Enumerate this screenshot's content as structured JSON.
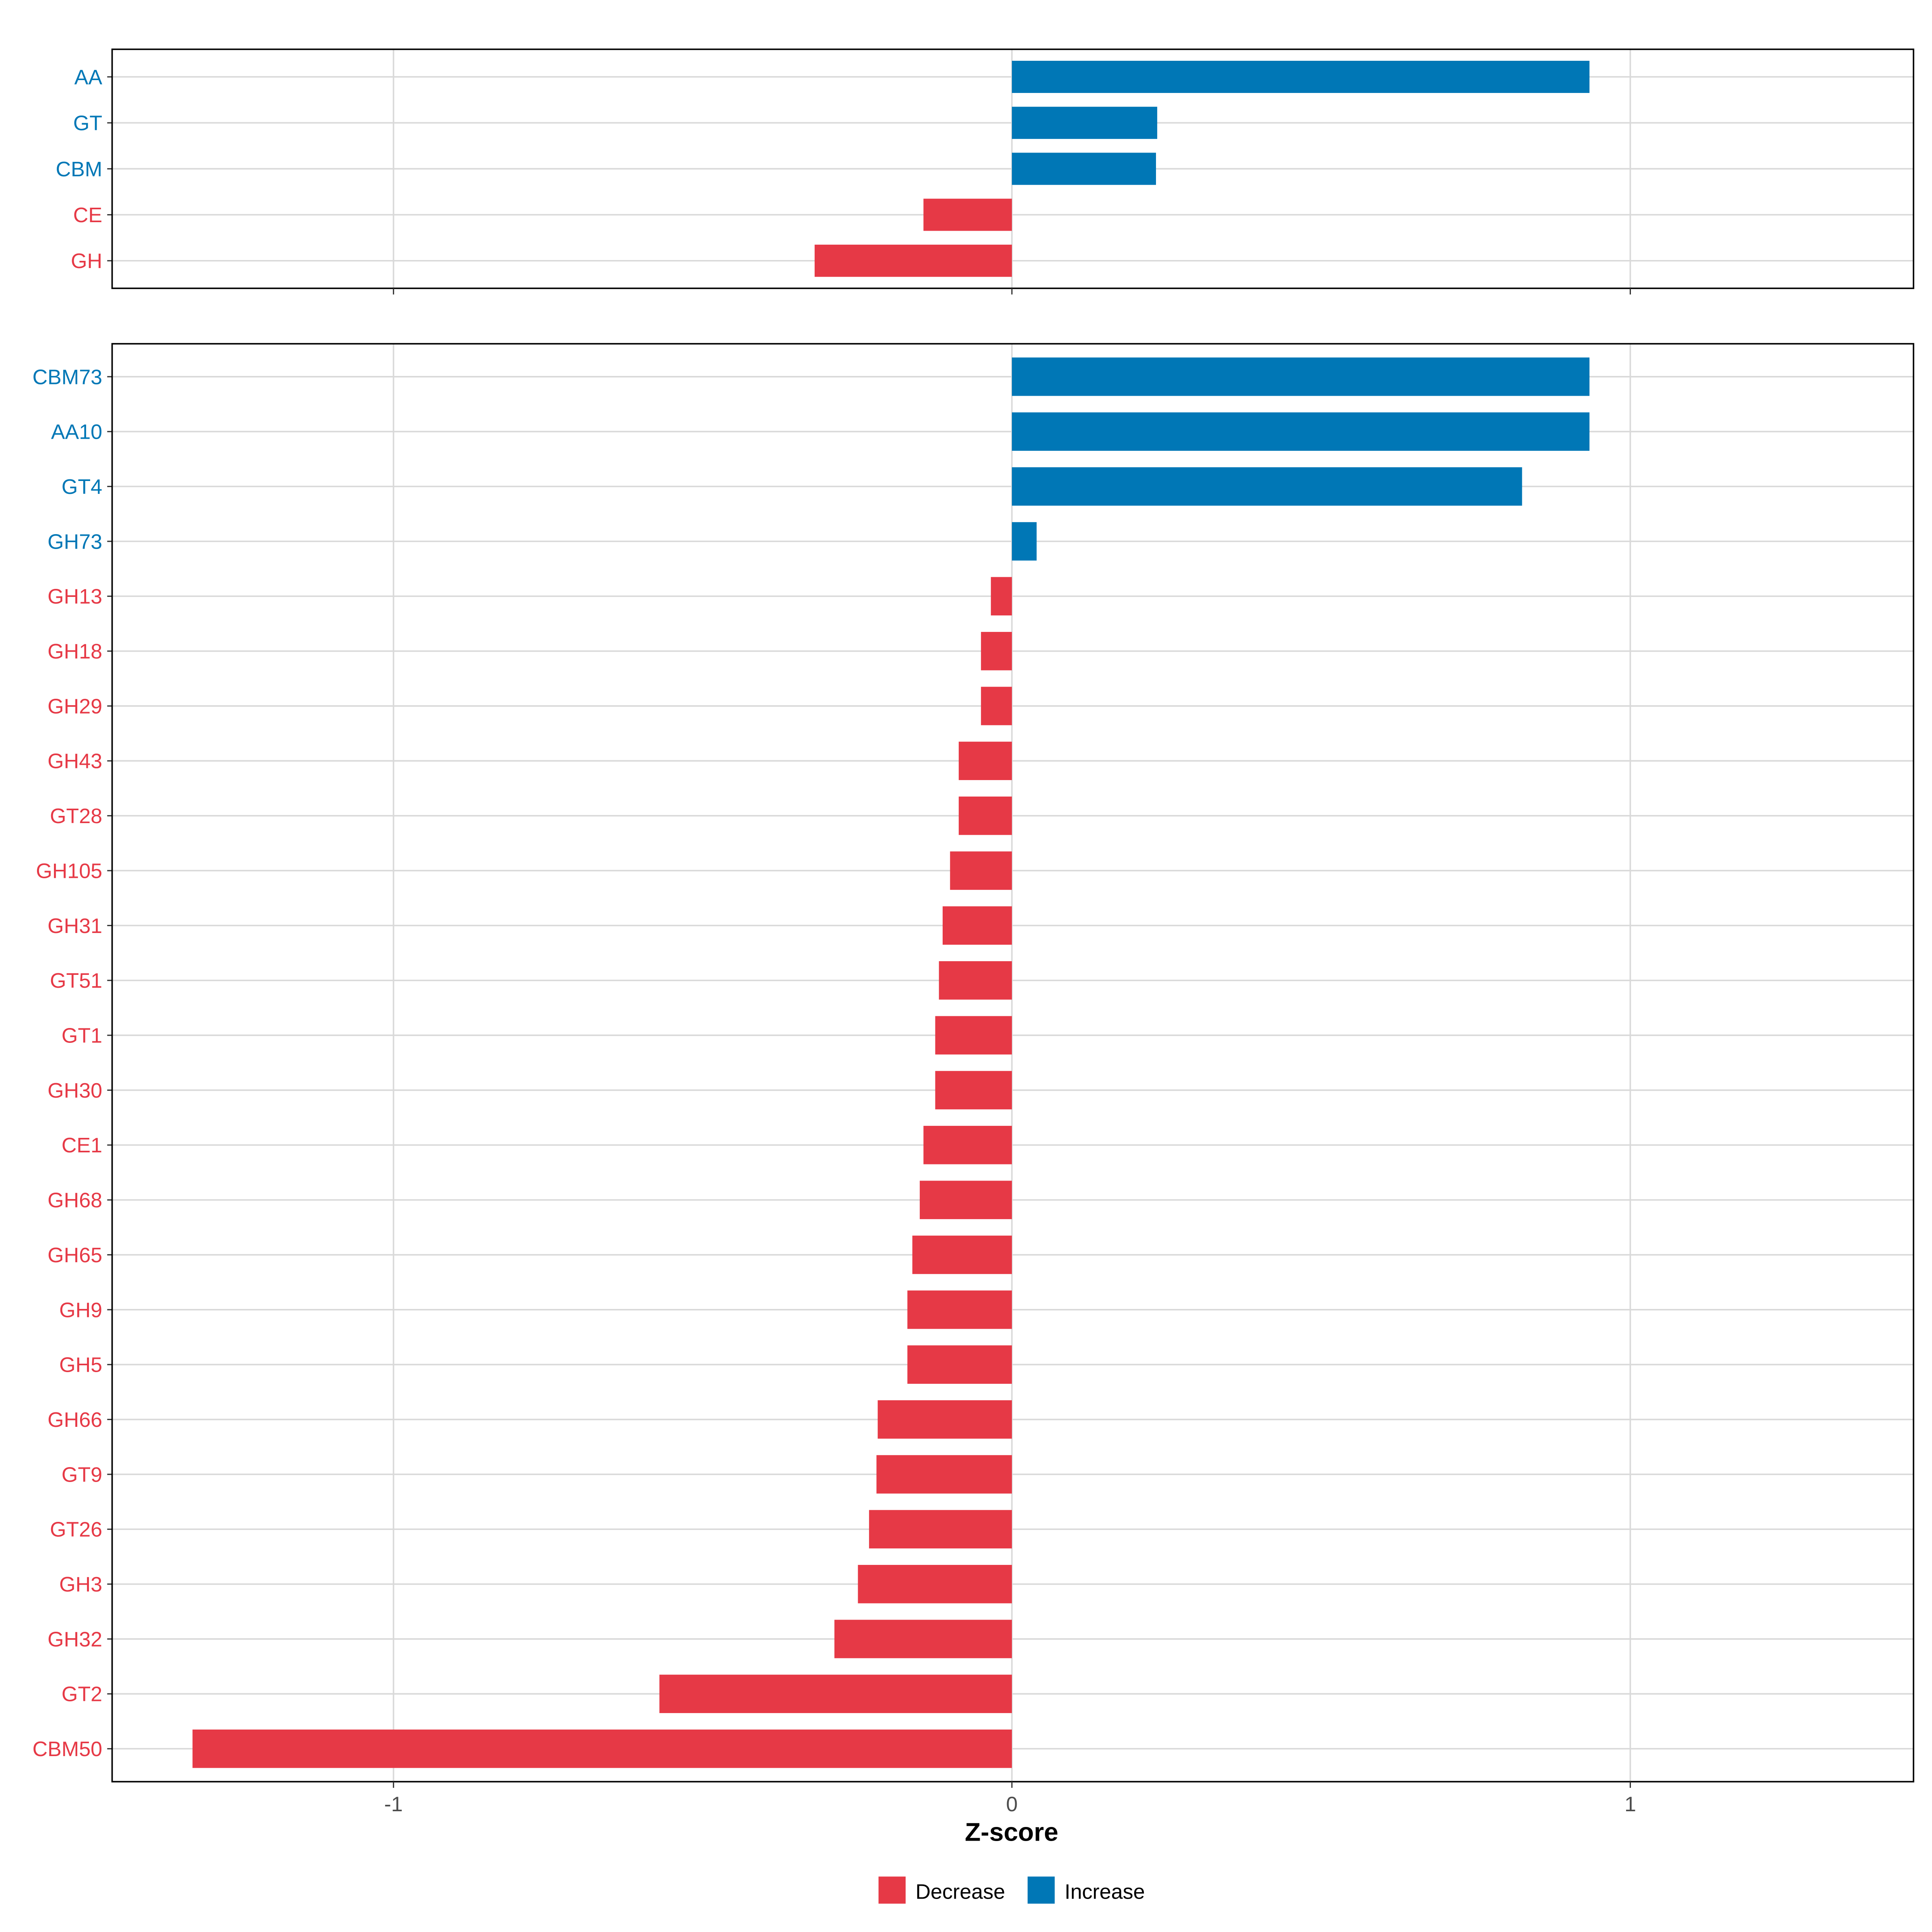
{
  "chart_data": [
    {
      "type": "bar",
      "orientation": "horizontal",
      "panel": "top",
      "categories": [
        "AA",
        "GT",
        "CBM",
        "CE",
        "GH"
      ],
      "values": [
        0.934,
        0.235,
        0.233,
        -0.143,
        -0.319
      ],
      "xlim": [
        -1.455,
        1.458
      ],
      "grid": true
    },
    {
      "type": "bar",
      "orientation": "horizontal",
      "panel": "bottom",
      "categories": [
        "CBM73",
        "AA10",
        "GT4",
        "GH73",
        "GH13",
        "GH18",
        "GH29",
        "GH43",
        "GT28",
        "GH105",
        "GH31",
        "GT51",
        "GT1",
        "GH30",
        "CE1",
        "GH68",
        "GH65",
        "GH9",
        "GH5",
        "GH66",
        "GT9",
        "GT26",
        "GH3",
        "GH32",
        "GT2",
        "CBM50"
      ],
      "values": [
        0.934,
        0.934,
        0.825,
        0.04,
        -0.034,
        -0.05,
        -0.05,
        -0.086,
        -0.086,
        -0.1,
        -0.112,
        -0.118,
        -0.124,
        -0.124,
        -0.143,
        -0.149,
        -0.161,
        -0.169,
        -0.169,
        -0.217,
        -0.219,
        -0.231,
        -0.249,
        -0.287,
        -0.57,
        -1.325
      ],
      "xlim": [
        -1.455,
        1.458
      ],
      "grid": true
    }
  ],
  "xaxis": {
    "label": "Z-score",
    "ticks": [
      -1,
      0,
      1
    ],
    "tick_labels": [
      "-1",
      "0",
      "1"
    ]
  },
  "legend": {
    "placement": "bottom",
    "items": [
      {
        "label": "Decrease",
        "color": "#E63946"
      },
      {
        "label": "Increase",
        "color": "#0077B6"
      }
    ]
  },
  "colors": {
    "decrease": "#E63946",
    "increase": "#0077B6",
    "grid": "#D9D9D9"
  }
}
